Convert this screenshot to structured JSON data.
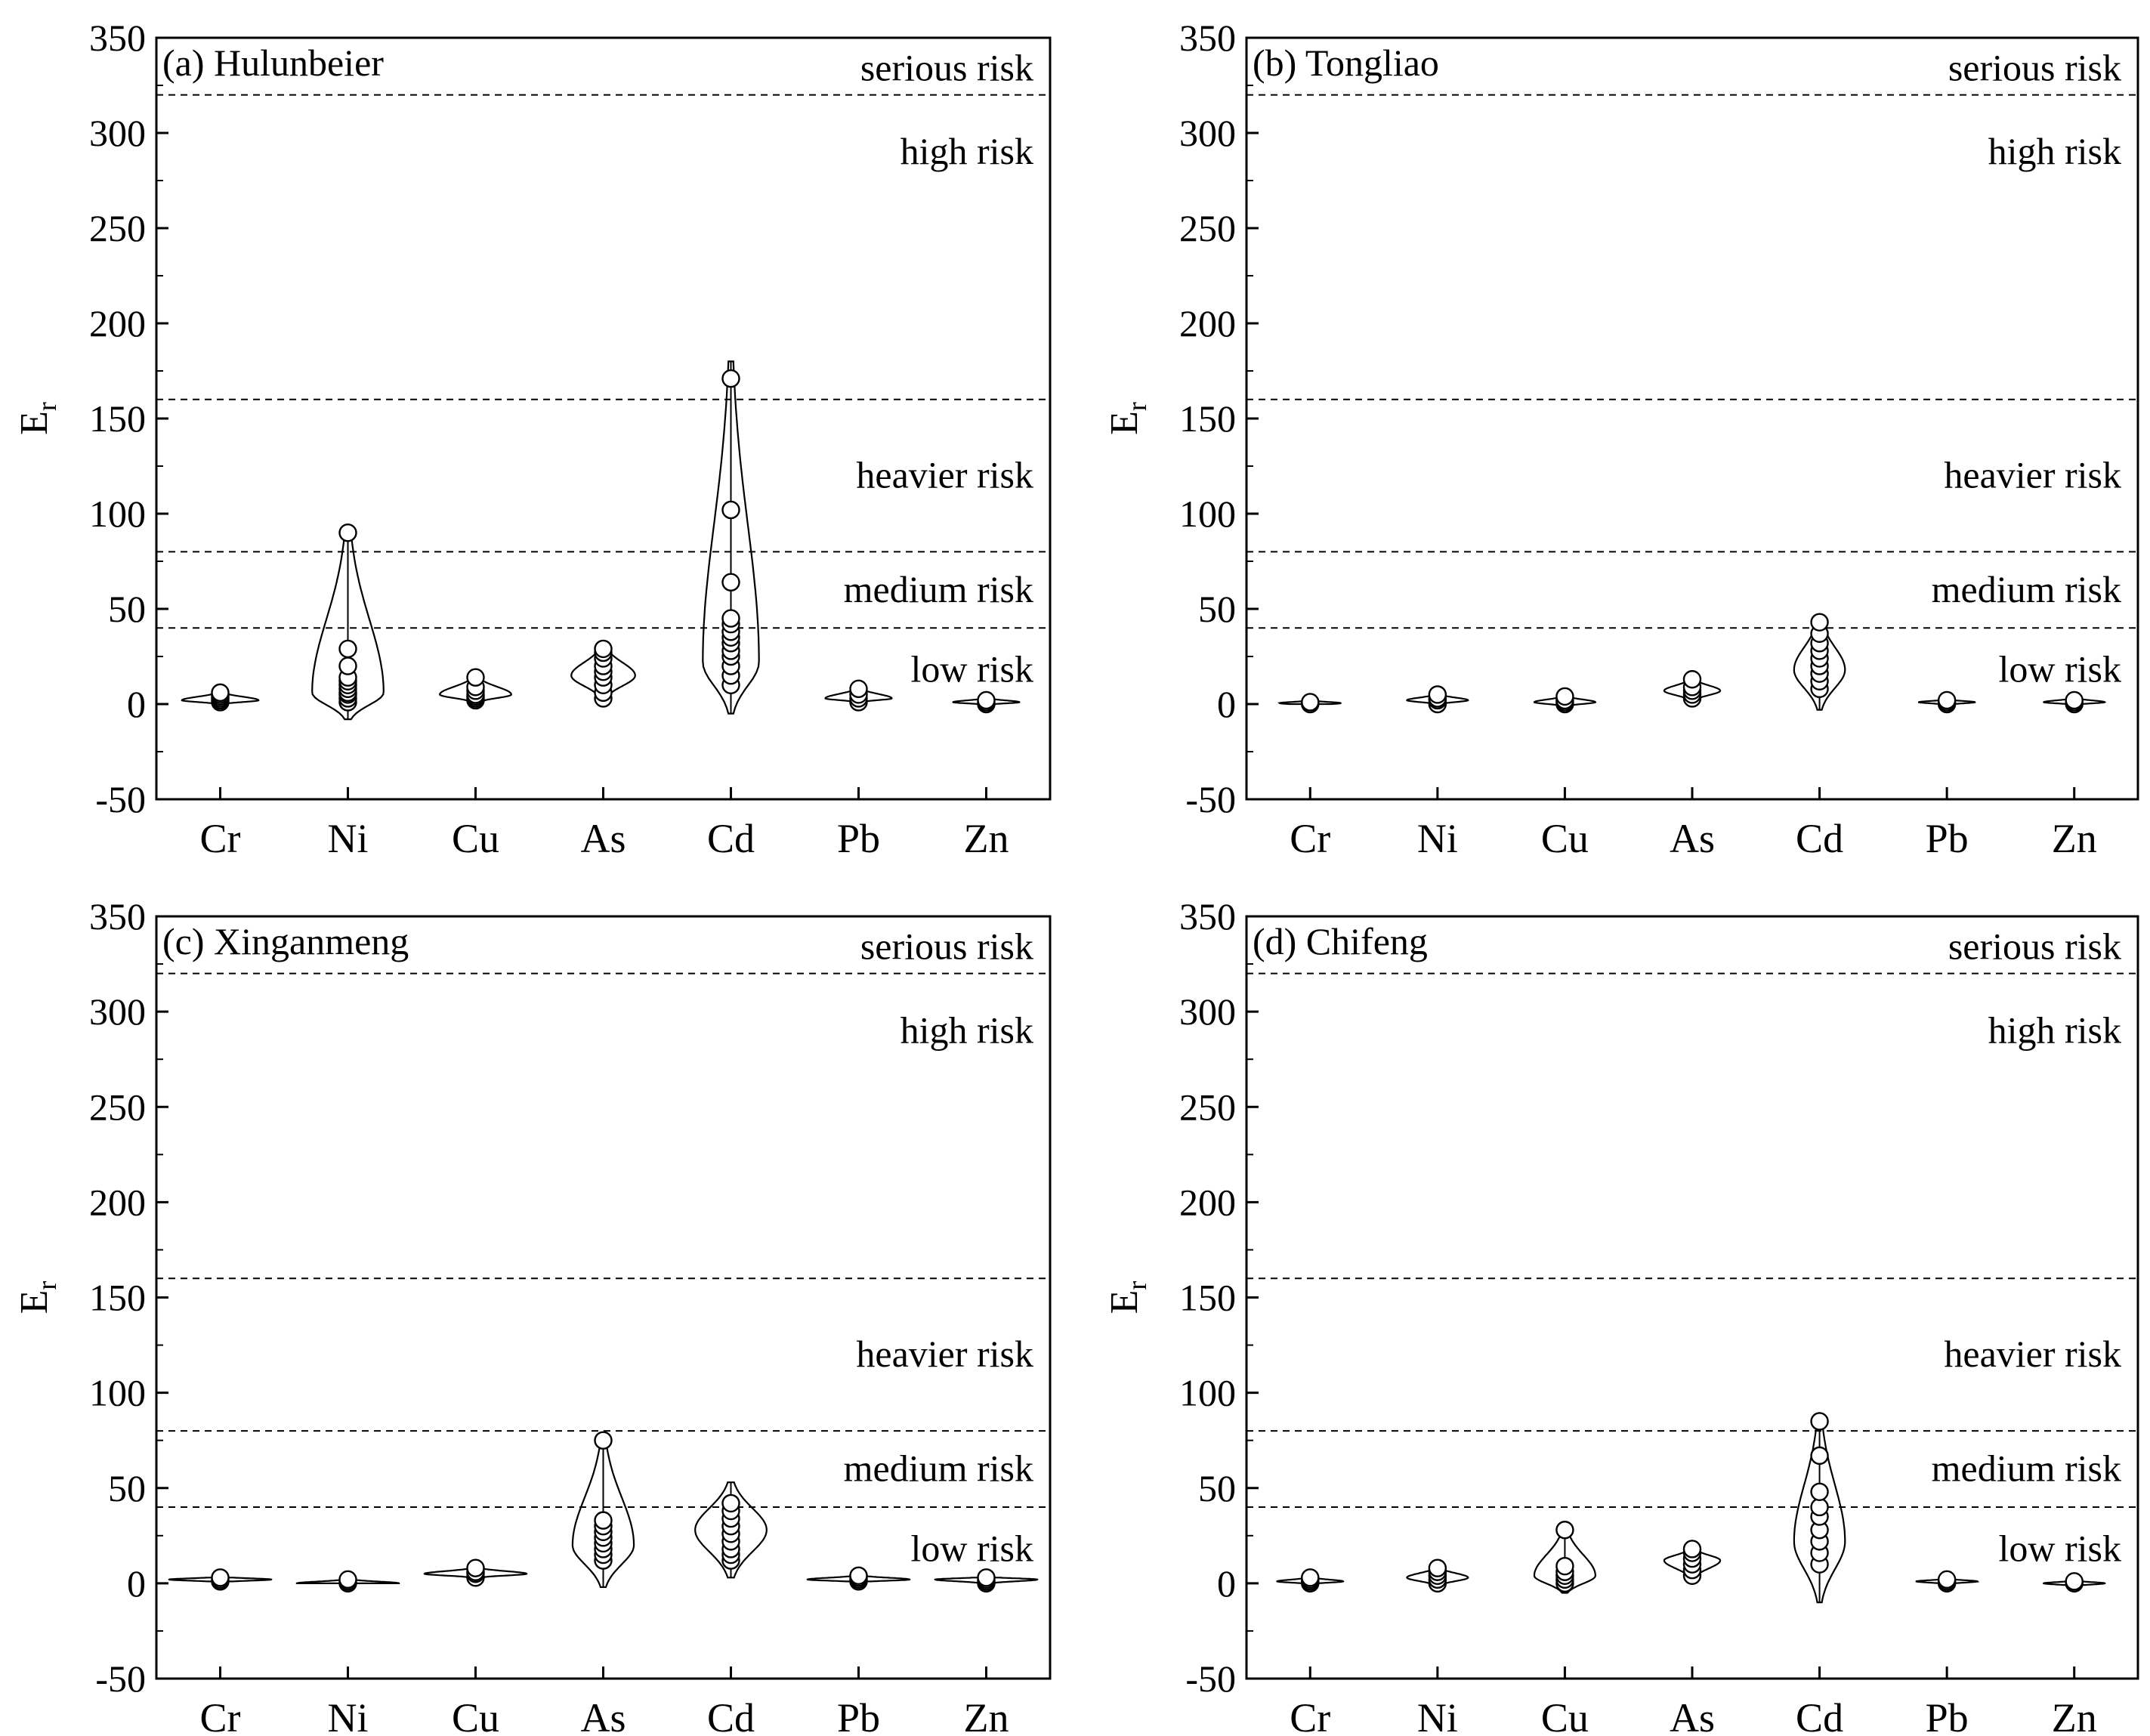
{
  "figure": {
    "ylabel_main": "E",
    "ylabel_sub": "r",
    "risk_thresholds": [
      40,
      80,
      160,
      320
    ],
    "risk_levels": [
      "low risk",
      "medium risk",
      "heavier risk",
      "high risk",
      "serious risk"
    ]
  },
  "chart_data": [
    {
      "type": "violin",
      "title": "(a) Hulunbeier",
      "categories": [
        "Cr",
        "Ni",
        "Cu",
        "As",
        "Cd",
        "Pb",
        "Zn"
      ],
      "ylim": [
        -50,
        350
      ],
      "yticks": [
        -50,
        0,
        50,
        100,
        150,
        200,
        250,
        300,
        350
      ],
      "ylabel": "Er",
      "thresholds": [
        40,
        80,
        160,
        320
      ],
      "risk_labels": [
        "low risk",
        "medium risk",
        "heavier risk",
        "high risk",
        "serious risk"
      ],
      "series": [
        {
          "name": "Cr",
          "range": [
            0,
            6
          ],
          "mode": 2,
          "max_half_width": 0.3,
          "points": [
            1,
            2,
            3,
            4,
            5,
            6
          ]
        },
        {
          "name": "Ni",
          "range": [
            -8,
            90
          ],
          "mode": 6,
          "max_half_width": 0.28,
          "points": [
            1,
            3,
            5,
            6,
            8,
            10,
            12,
            14,
            20,
            29,
            90
          ]
        },
        {
          "name": "Cu",
          "range": [
            1,
            14
          ],
          "mode": 5,
          "max_half_width": 0.28,
          "points": [
            2,
            3,
            4,
            5,
            7,
            9,
            14
          ]
        },
        {
          "name": "As",
          "range": [
            3,
            30
          ],
          "mode": 15,
          "max_half_width": 0.25,
          "points": [
            3,
            6,
            10,
            14,
            17,
            20,
            24,
            27,
            29
          ]
        },
        {
          "name": "Cd",
          "range": [
            -5,
            180
          ],
          "mode": 22,
          "max_half_width": 0.22,
          "points": [
            10,
            15,
            20,
            25,
            28,
            32,
            35,
            38,
            42,
            45,
            64,
            102,
            171
          ]
        },
        {
          "name": "Pb",
          "range": [
            1,
            8
          ],
          "mode": 3,
          "max_half_width": 0.26,
          "points": [
            1,
            3,
            5,
            8
          ]
        },
        {
          "name": "Zn",
          "range": [
            0,
            3
          ],
          "mode": 1,
          "max_half_width": 0.26,
          "points": [
            0,
            1,
            2
          ]
        }
      ]
    },
    {
      "type": "violin",
      "title": "(b) Tongliao",
      "categories": [
        "Cr",
        "Ni",
        "Cu",
        "As",
        "Cd",
        "Pb",
        "Zn"
      ],
      "ylim": [
        -50,
        350
      ],
      "yticks": [
        -50,
        0,
        50,
        100,
        150,
        200,
        250,
        300,
        350
      ],
      "ylabel": "Er",
      "thresholds": [
        40,
        80,
        160,
        320
      ],
      "risk_labels": [
        "low risk",
        "medium risk",
        "heavier risk",
        "high risk",
        "serious risk"
      ],
      "series": [
        {
          "name": "Cr",
          "range": [
            0,
            1.5
          ],
          "mode": 0.5,
          "max_half_width": 0.24,
          "points": [
            0,
            1
          ]
        },
        {
          "name": "Ni",
          "range": [
            0,
            5
          ],
          "mode": 2,
          "max_half_width": 0.24,
          "points": [
            0,
            2,
            3,
            5
          ]
        },
        {
          "name": "Cu",
          "range": [
            -1,
            4
          ],
          "mode": 1,
          "max_half_width": 0.24,
          "points": [
            0,
            1,
            2,
            4
          ]
        },
        {
          "name": "As",
          "range": [
            2,
            13
          ],
          "mode": 7,
          "max_half_width": 0.22,
          "points": [
            3,
            5,
            7,
            9,
            13
          ]
        },
        {
          "name": "Cd",
          "range": [
            -3,
            44
          ],
          "mode": 18,
          "max_half_width": 0.2,
          "points": [
            8,
            12,
            16,
            20,
            24,
            28,
            32,
            37,
            43
          ]
        },
        {
          "name": "Pb",
          "range": [
            0,
            2
          ],
          "mode": 1,
          "max_half_width": 0.22,
          "points": [
            0,
            1,
            2
          ]
        },
        {
          "name": "Zn",
          "range": [
            0,
            3
          ],
          "mode": 1,
          "max_half_width": 0.24,
          "points": [
            0,
            1,
            2
          ]
        }
      ]
    },
    {
      "type": "violin",
      "title": "(c) Xinganmeng",
      "categories": [
        "Cr",
        "Ni",
        "Cu",
        "As",
        "Cd",
        "Pb",
        "Zn"
      ],
      "ylim": [
        -50,
        350
      ],
      "yticks": [
        -50,
        0,
        50,
        100,
        150,
        200,
        250,
        300,
        350
      ],
      "ylabel": "Er",
      "thresholds": [
        40,
        80,
        160,
        320
      ],
      "risk_labels": [
        "low risk",
        "medium risk",
        "heavier risk",
        "high risk",
        "serious risk"
      ],
      "series": [
        {
          "name": "Cr",
          "range": [
            1,
            3
          ],
          "mode": 2,
          "max_half_width": 0.4,
          "points": [
            1,
            2,
            3
          ]
        },
        {
          "name": "Ni",
          "range": [
            0,
            2
          ],
          "mode": 0,
          "max_half_width": 0.4,
          "points": [
            0,
            1,
            2
          ]
        },
        {
          "name": "Cu",
          "range": [
            3,
            8
          ],
          "mode": 5,
          "max_half_width": 0.4,
          "points": [
            3,
            5,
            6,
            8
          ]
        },
        {
          "name": "As",
          "range": [
            -2,
            75
          ],
          "mode": 20,
          "max_half_width": 0.24,
          "points": [
            12,
            15,
            18,
            21,
            24,
            27,
            30,
            33,
            75
          ]
        },
        {
          "name": "Cd",
          "range": [
            3,
            53
          ],
          "mode": 28,
          "max_half_width": 0.28,
          "points": [
            12,
            15,
            18,
            22,
            26,
            30,
            34,
            38,
            42
          ]
        },
        {
          "name": "Pb",
          "range": [
            1,
            4
          ],
          "mode": 2,
          "max_half_width": 0.4,
          "points": [
            1,
            2,
            3,
            4
          ]
        },
        {
          "name": "Zn",
          "range": [
            0,
            3
          ],
          "mode": 2,
          "max_half_width": 0.4,
          "points": [
            0,
            1,
            2,
            3
          ]
        }
      ]
    },
    {
      "type": "violin",
      "title": "(d) Chifeng",
      "categories": [
        "Cr",
        "Ni",
        "Cu",
        "As",
        "Cd",
        "Pb",
        "Zn"
      ],
      "ylim": [
        -50,
        350
      ],
      "yticks": [
        -50,
        0,
        50,
        100,
        150,
        200,
        250,
        300,
        350
      ],
      "ylabel": "Er",
      "thresholds": [
        40,
        80,
        160,
        320
      ],
      "risk_labels": [
        "low risk",
        "medium risk",
        "heavier risk",
        "high risk",
        "serious risk"
      ],
      "series": [
        {
          "name": "Cr",
          "range": [
            0,
            3
          ],
          "mode": 1,
          "max_half_width": 0.26,
          "points": [
            0,
            1,
            2,
            3
          ]
        },
        {
          "name": "Ni",
          "range": [
            -1,
            8
          ],
          "mode": 3,
          "max_half_width": 0.24,
          "points": [
            0,
            2,
            4,
            6,
            8
          ]
        },
        {
          "name": "Cu",
          "range": [
            -5,
            28
          ],
          "mode": 4,
          "max_half_width": 0.24,
          "points": [
            0,
            2,
            4,
            6,
            9,
            28
          ]
        },
        {
          "name": "As",
          "range": [
            3,
            18
          ],
          "mode": 12,
          "max_half_width": 0.22,
          "points": [
            4,
            7,
            10,
            13,
            16,
            18
          ]
        },
        {
          "name": "Cd",
          "range": [
            -10,
            87
          ],
          "mode": 22,
          "max_half_width": 0.2,
          "points": [
            10,
            16,
            22,
            28,
            35,
            40,
            48,
            67,
            85
          ]
        },
        {
          "name": "Pb",
          "range": [
            0,
            2
          ],
          "mode": 1,
          "max_half_width": 0.24,
          "points": [
            0,
            1,
            2
          ]
        },
        {
          "name": "Zn",
          "range": [
            -1,
            1
          ],
          "mode": 0,
          "max_half_width": 0.24,
          "points": [
            0,
            1
          ]
        }
      ]
    }
  ]
}
